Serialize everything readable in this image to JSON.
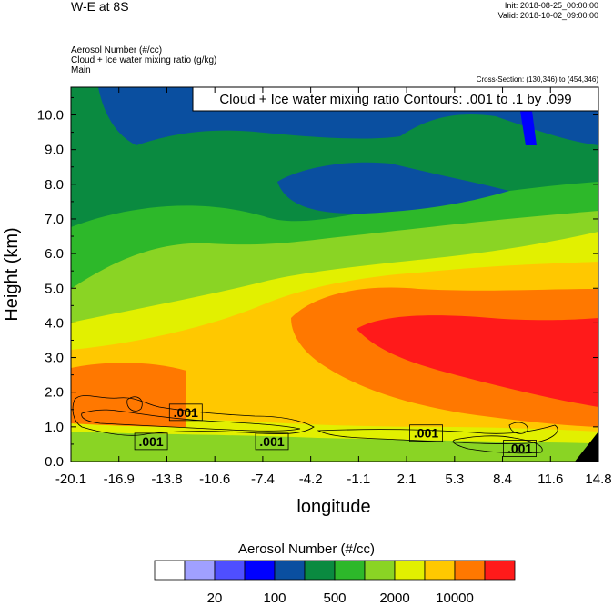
{
  "header": {
    "title": "W-E at 8S",
    "init": "Init: 2018-08-25_00:00:00",
    "valid": "Valid: 2018-10-02_09:00:00",
    "field_line_1": "Aerosol Number   (#/cc)",
    "field_line_2": "Cloud + Ice water mixing ratio   (g/kg)",
    "field_line_3": "Main",
    "cross_section": "Cross-Section: (130,346) to (454,346)"
  },
  "chart_data": {
    "type": "heatmap",
    "contour_title": "Cloud + Ice water mixing ratio Contours: .001 to .1 by .099",
    "xlabel": "longitude",
    "ylabel": "Height (km)",
    "x_ticks": [
      "-20.1",
      "-16.9",
      "-13.8",
      "-10.6",
      "-7.4",
      "-4.2",
      "-1.1",
      "2.1",
      "5.3",
      "8.4",
      "11.6",
      "14.8"
    ],
    "y_ticks": [
      "0.0",
      "1.0",
      "2.0",
      "3.0",
      "4.0",
      "5.0",
      "6.0",
      "7.0",
      "8.0",
      "9.0",
      "10.0"
    ],
    "xlim": [
      -20.1,
      14.8
    ],
    "ylim": [
      0,
      10.8
    ],
    "contour_labels": [
      {
        "text": ".001",
        "x": -14.8,
        "y": 0.58
      },
      {
        "text": ".001",
        "x": -12.5,
        "y": 1.42
      },
      {
        "text": ".001",
        "x": -6.8,
        "y": 0.58
      },
      {
        "text": ".001",
        "x": 3.4,
        "y": 0.82
      },
      {
        "text": ".001",
        "x": 9.6,
        "y": 0.38
      }
    ],
    "colorbar": {
      "title": "Aerosol Number  (#/cc)",
      "colors": [
        "#ffffff",
        "#a0a0ff",
        "#4f4fff",
        "#0000ff",
        "#0a4fa0",
        "#0a8a40",
        "#2db82a",
        "#8ad424",
        "#e2f000",
        "#ffc800",
        "#ff7800",
        "#ff1a1a"
      ],
      "tick_labels": [
        "20",
        "100",
        "500",
        "2000",
        "10000"
      ]
    }
  }
}
